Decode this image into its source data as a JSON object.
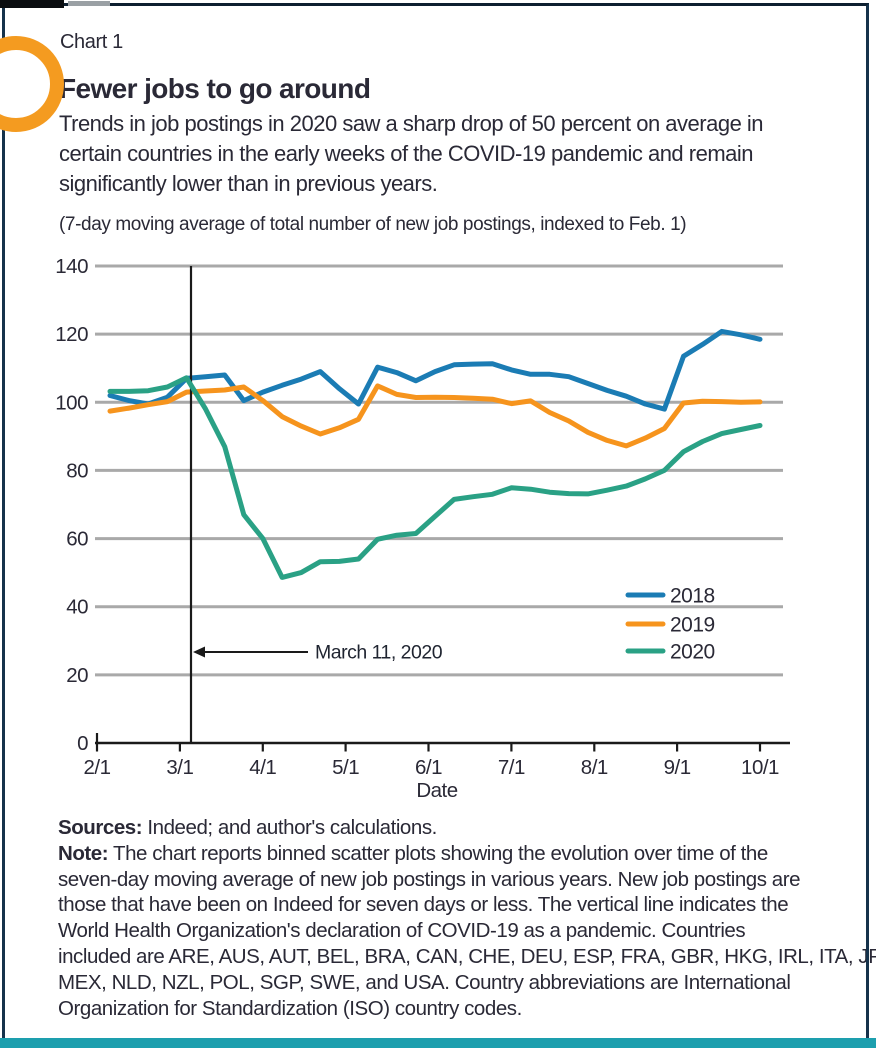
{
  "page": {
    "kicker": "Chart 1",
    "title": "Fewer jobs to go around",
    "subtitle_lines": [
      "Trends in job postings in 2020 saw a sharp drop of 50 percent on average in",
      "certain countries in the early weeks of the COVID-19 pandemic and remain",
      "significantly lower than in previous years."
    ],
    "units_note": "(7-day moving average of total number of new job postings, indexed to Feb. 1)"
  },
  "chart_data": {
    "type": "line",
    "title": "Fewer jobs to go around",
    "xlabel": "Date",
    "ylabel": "",
    "ylim": [
      0,
      140
    ],
    "yticks": [
      0,
      20,
      40,
      60,
      80,
      100,
      120,
      140
    ],
    "xticks": [
      "2/1",
      "3/1",
      "4/1",
      "5/1",
      "6/1",
      "7/1",
      "8/1",
      "9/1",
      "10/1"
    ],
    "grid": true,
    "legend_position": "right-middle",
    "annotation": {
      "label": "March 11, 2020",
      "date": "3/11",
      "meaning": "WHO declaration of COVID-19 as a pandemic"
    },
    "colors": {
      "grid": "#a9a9a9",
      "axis": "#1a1a1a"
    },
    "x_dates": [
      "2/5",
      "2/12",
      "2/19",
      "2/26",
      "3/4",
      "3/11",
      "3/18",
      "3/25",
      "4/1",
      "4/8",
      "4/15",
      "4/22",
      "4/29",
      "5/6",
      "5/13",
      "5/20",
      "5/27",
      "6/3",
      "6/10",
      "6/17",
      "6/24",
      "7/1",
      "7/8",
      "7/15",
      "7/22",
      "7/29",
      "8/5",
      "8/12",
      "8/19",
      "8/26",
      "9/2",
      "9/9",
      "9/16",
      "9/23",
      "9/30"
    ],
    "series": [
      {
        "name": "2018",
        "color": "#1b7cb4",
        "values": [
          102,
          100.5,
          99.5,
          101.5,
          107,
          107.5,
          108,
          100.5,
          103,
          105,
          106.8,
          109,
          104,
          99.5,
          110.3,
          108.7,
          106.3,
          109,
          111,
          111.2,
          111.3,
          109.5,
          108.2,
          108.2,
          107.5,
          105.5,
          103.5,
          101.8,
          99.5,
          98,
          113.5,
          117,
          120.8,
          119.8,
          118.5
        ]
      },
      {
        "name": "2019",
        "color": "#f6941d",
        "values": [
          97.4,
          98.3,
          99.3,
          100.2,
          103,
          103.3,
          103.6,
          104.5,
          100.5,
          95.8,
          93,
          90.7,
          92.5,
          95,
          104.8,
          102.3,
          101.4,
          101.5,
          101.4,
          101.2,
          100.9,
          99.6,
          100.4,
          97,
          94.5,
          91.2,
          88.8,
          87.2,
          89.5,
          92.3,
          99.8,
          100.3,
          100.2,
          100,
          100.1
        ]
      },
      {
        "name": "2020",
        "color": "#2aa185",
        "values": [
          103.2,
          103.2,
          103.4,
          104.5,
          107.2,
          98,
          87,
          67,
          60,
          48.6,
          50,
          53.2,
          53.3,
          54,
          59.8,
          61,
          61.5,
          66.5,
          71.5,
          72.3,
          73,
          74.9,
          74.5,
          73.6,
          73.2,
          73.1,
          74.2,
          75.4,
          77.5,
          80,
          85.5,
          88.5,
          90.8,
          92,
          93.2
        ]
      }
    ]
  },
  "footer": {
    "sources_label": "Sources:",
    "sources_text": "Indeed; and author's calculations.",
    "note_label": "Note:",
    "note_lines": [
      "The chart reports binned scatter plots showing the evolution over time of the",
      "seven-day moving average of new job postings in various years. New job postings are",
      "those that have been on Indeed for seven days or less. The vertical line indicates the",
      "World Health Organization's declaration of COVID-19 as a pandemic. Countries",
      "included are ARE, AUS, AUT, BEL, BRA, CAN, CHE, DEU, ESP, FRA, GBR, HKG, IRL, ITA, JPN,",
      "MEX, NLD, NZL, POL, SGP, SWE, and USA. Country abbreviations are International",
      "Organization for Standardization (ISO) country codes."
    ]
  }
}
